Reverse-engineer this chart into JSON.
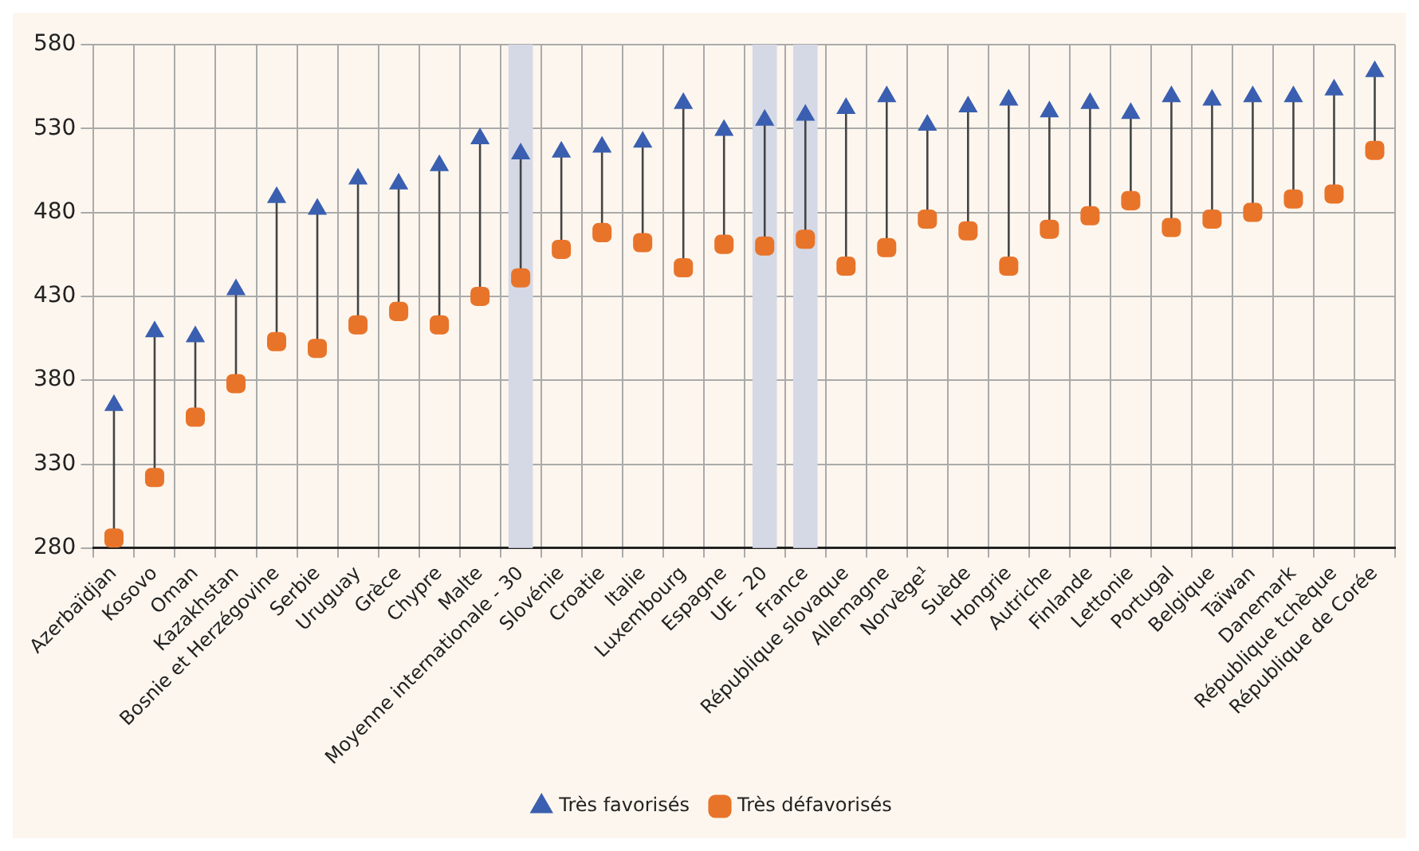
{
  "chart_data": {
    "type": "scatter",
    "categories": [
      "Azerbaïdjan",
      "Kosovo",
      "Oman",
      "Kazakhstan",
      "Bosnie et Herzégovine",
      "Serbie",
      "Uruguay",
      "Grèce",
      "Chypre",
      "Malte",
      "Moyenne internationale - 30",
      "Slovénie",
      "Croatie",
      "Italie",
      "Luxembourg",
      "Espagne",
      "UE - 20",
      "France",
      "République slovaque",
      "Allemagne",
      "Norvège¹",
      "Suède",
      "Hongrie",
      "Autriche",
      "Finlande",
      "Lettonie",
      "Portugal",
      "Belgique",
      "Taïwan",
      "Danemark",
      "République tchèque",
      "République de Corée"
    ],
    "series": [
      {
        "name": "Très favorisés",
        "color": "#3a5fb0",
        "marker": "triangle",
        "values": [
          365,
          409,
          406,
          434,
          489,
          482,
          500,
          497,
          508,
          524,
          515,
          516,
          519,
          522,
          545,
          529,
          535,
          538,
          542,
          549,
          532,
          543,
          547,
          540,
          545,
          539,
          549,
          547,
          549,
          549,
          553,
          564
        ]
      },
      {
        "name": "Très défavorisés",
        "color": "#e8742a",
        "marker": "square",
        "values": [
          286,
          322,
          358,
          378,
          403,
          399,
          413,
          421,
          413,
          430,
          441,
          458,
          468,
          462,
          447,
          461,
          460,
          464,
          448,
          459,
          476,
          469,
          448,
          470,
          478,
          487,
          471,
          476,
          480,
          488,
          491,
          517
        ]
      }
    ],
    "bands": [
      {
        "axis": "x",
        "from": "Moyenne internationale - 30",
        "to": "Moyenne internationale - 30",
        "color": "#d5d9e6"
      },
      {
        "axis": "x",
        "from": "UE - 20",
        "to": "UE - 20",
        "color": "#d5d9e6"
      },
      {
        "axis": "x",
        "from": "France",
        "to": "France",
        "color": "#d5d9e6"
      }
    ],
    "ylim": [
      280,
      580
    ],
    "yticks": [
      280,
      330,
      380,
      430,
      480,
      530,
      580
    ],
    "grid": true,
    "legend": "bottom"
  }
}
